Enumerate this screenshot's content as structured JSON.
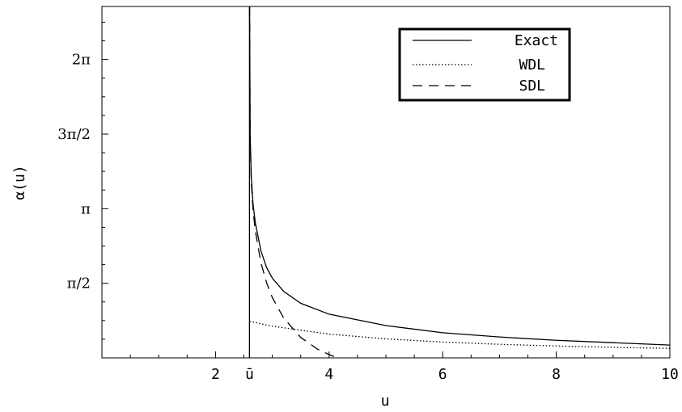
{
  "chart_data": {
    "type": "line",
    "title": "",
    "xlabel": "u",
    "ylabel": "α(u)",
    "xlim": [
      0,
      10
    ],
    "ylim": [
      0,
      7.4
    ],
    "grid": false,
    "legend_placement": "top-right",
    "x_ticks": [
      {
        "value": 2,
        "label": "2"
      },
      {
        "value": 2.598,
        "label": "ū"
      },
      {
        "value": 4,
        "label": "4"
      },
      {
        "value": 6,
        "label": "6"
      },
      {
        "value": 8,
        "label": "8"
      },
      {
        "value": 10,
        "label": "10"
      }
    ],
    "y_ticks": [
      {
        "value": 1.5708,
        "label": "π/2"
      },
      {
        "value": 3.1416,
        "label": "π"
      },
      {
        "value": 4.7124,
        "label": "3π/2"
      },
      {
        "value": 6.2832,
        "label": "2π"
      }
    ],
    "vertical_line_x": 2.598,
    "series": [
      {
        "name": "Exact",
        "style": "solid",
        "x": [
          2.6,
          2.61,
          2.63,
          2.66,
          2.7,
          2.8,
          2.9,
          3.0,
          3.2,
          3.5,
          4.0,
          5.0,
          6.0,
          7.0,
          8.0,
          9.0,
          10.0
        ],
        "y": [
          7.4,
          4.7,
          3.8,
          3.25,
          2.85,
          2.25,
          1.9,
          1.68,
          1.4,
          1.15,
          0.92,
          0.68,
          0.53,
          0.44,
          0.37,
          0.32,
          0.27
        ]
      },
      {
        "name": "WDL",
        "style": "dotted",
        "x": [
          2.6,
          3.0,
          4.0,
          5.0,
          6.0,
          7.0,
          8.0,
          9.0,
          10.0
        ],
        "y": [
          0.77,
          0.667,
          0.5,
          0.4,
          0.333,
          0.286,
          0.25,
          0.222,
          0.2
        ]
      },
      {
        "name": "SDL",
        "style": "dashed",
        "x": [
          2.6,
          2.61,
          2.63,
          2.66,
          2.7,
          2.8,
          2.9,
          3.0,
          3.2,
          3.5,
          3.8,
          4.0,
          4.2,
          4.35
        ],
        "y": [
          7.4,
          4.6,
          3.7,
          3.12,
          2.68,
          2.0,
          1.58,
          1.27,
          0.84,
          0.43,
          0.18,
          0.07,
          -0.03,
          -0.1
        ]
      }
    ]
  }
}
